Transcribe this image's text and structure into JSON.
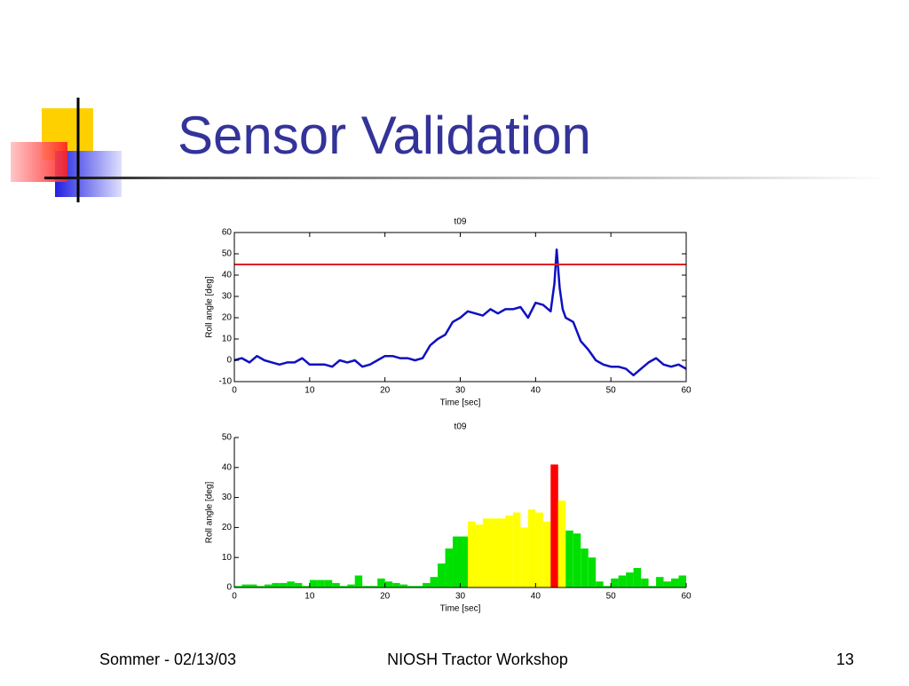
{
  "slide": {
    "title": "Sensor Validation"
  },
  "footer": {
    "left": "Sommer - 02/13/03",
    "center": "NIOSH Tractor Workshop",
    "right": "13"
  },
  "chart_data": [
    {
      "type": "line",
      "title": "t09",
      "x_label": "Time [sec]",
      "y_label": "Roll angle [deg]",
      "xlim": [
        0,
        60
      ],
      "ylim": [
        -10,
        60
      ],
      "xticks": [
        0,
        10,
        20,
        30,
        40,
        50,
        60
      ],
      "yticks": [
        -10,
        0,
        10,
        20,
        30,
        40,
        50,
        60
      ],
      "x": [
        0,
        1,
        2,
        3,
        4,
        5,
        6,
        7,
        8,
        9,
        10,
        11,
        12,
        13,
        14,
        15,
        16,
        17,
        18,
        19,
        20,
        21,
        22,
        23,
        24,
        25,
        26,
        27,
        28,
        29,
        30,
        31,
        32,
        33,
        34,
        35,
        36,
        37,
        38,
        39,
        40,
        41,
        42,
        42.5,
        42.8,
        43.2,
        43.6,
        44,
        45,
        46,
        47,
        48,
        49,
        50,
        51,
        52,
        53,
        54,
        55,
        56,
        57,
        58,
        59,
        60
      ],
      "series": [
        {
          "color": "#1010c0",
          "values": [
            0,
            1,
            -1,
            2,
            0,
            -1,
            -2,
            -1,
            -1,
            1,
            -2,
            -2,
            -2,
            -3,
            0,
            -1,
            0,
            -3,
            -2,
            0,
            2,
            2,
            1,
            1,
            0,
            1,
            7,
            10,
            12,
            18,
            20,
            23,
            22,
            21,
            24,
            22,
            24,
            24,
            25,
            20,
            27,
            26,
            23,
            36,
            52,
            34,
            24,
            20,
            18,
            9,
            5,
            0,
            -2,
            -3,
            -3,
            -4,
            -7,
            -4,
            -1,
            1,
            -2,
            -3,
            -2,
            -4
          ]
        }
      ],
      "hlines": [
        {
          "value": 45,
          "color": "#e02020"
        }
      ]
    },
    {
      "type": "histogram",
      "title": "t09",
      "x_label": "Time [sec]",
      "y_label": "Roll angle [deg]",
      "xlim": [
        0,
        60
      ],
      "ylim": [
        0,
        50
      ],
      "xticks": [
        0,
        10,
        20,
        30,
        40,
        50,
        60
      ],
      "yticks": [
        0,
        10,
        20,
        30,
        40,
        50
      ],
      "bins": [
        0,
        1,
        2,
        3,
        4,
        5,
        6,
        7,
        8,
        9,
        10,
        11,
        12,
        13,
        14,
        15,
        16,
        17,
        18,
        19,
        20,
        21,
        22,
        23,
        24,
        25,
        26,
        27,
        28,
        29,
        30,
        31,
        32,
        33,
        34,
        35,
        36,
        37,
        38,
        39,
        40,
        41,
        42,
        43,
        44,
        45,
        46,
        47,
        48,
        49,
        50,
        51,
        52,
        53,
        54,
        55,
        56,
        57,
        58,
        59,
        60
      ],
      "values": [
        0.5,
        1,
        1,
        0.5,
        1,
        1.5,
        1.5,
        2,
        1.5,
        0.5,
        2.5,
        2.5,
        2.5,
        1.5,
        0.5,
        1,
        4,
        0.5,
        0.5,
        3,
        2,
        1.5,
        1,
        0.5,
        0.5,
        1.5,
        3.5,
        8,
        13,
        17,
        17,
        22,
        21,
        23,
        23,
        23,
        24,
        25,
        20,
        26,
        25,
        22,
        41,
        29,
        19,
        18,
        13,
        10,
        2,
        0.5,
        3,
        4,
        5,
        6.5,
        3,
        0.5,
        3.5,
        2,
        3,
        4
      ],
      "colors": [
        "#00e000",
        "#00e000",
        "#00e000",
        "#00e000",
        "#00e000",
        "#00e000",
        "#00e000",
        "#00e000",
        "#00e000",
        "#00e000",
        "#00e000",
        "#00e000",
        "#00e000",
        "#00e000",
        "#00e000",
        "#00e000",
        "#00e000",
        "#00e000",
        "#00e000",
        "#00e000",
        "#00e000",
        "#00e000",
        "#00e000",
        "#00e000",
        "#00e000",
        "#00e000",
        "#00e000",
        "#00e000",
        "#00e000",
        "#00e000",
        "#00e000",
        "#ffff00",
        "#ffff00",
        "#ffff00",
        "#ffff00",
        "#ffff00",
        "#ffff00",
        "#ffff00",
        "#ffff00",
        "#ffff00",
        "#ffff00",
        "#ffff00",
        "#ff0000",
        "#ffff00",
        "#00e000",
        "#00e000",
        "#00e000",
        "#00e000",
        "#00e000",
        "#00e000",
        "#00e000",
        "#00e000",
        "#00e000",
        "#00e000",
        "#00e000",
        "#00e000",
        "#00e000",
        "#00e000",
        "#00e000",
        "#00e000"
      ]
    }
  ]
}
